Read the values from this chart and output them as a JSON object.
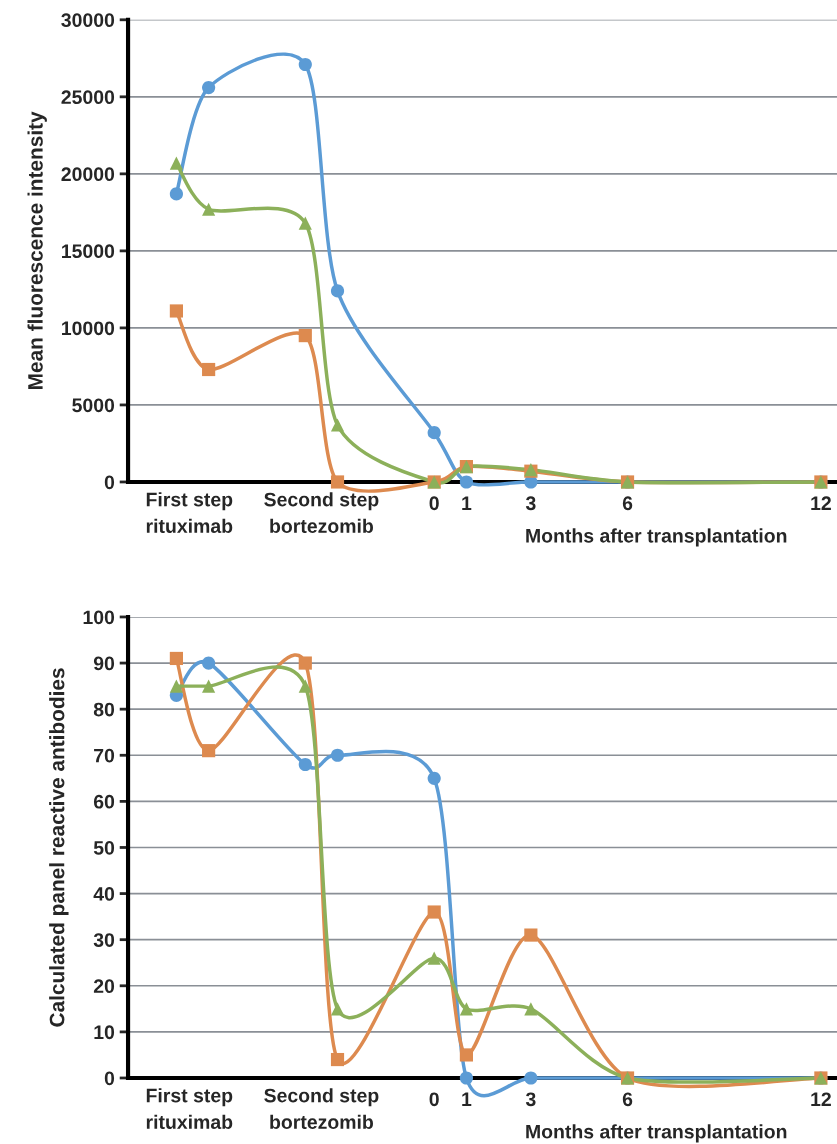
{
  "chart_data": [
    {
      "type": "line",
      "ylabel": "Mean fluorescence intensity",
      "xlabel": "Months after transplantation",
      "x": [
        -8,
        -7,
        -4,
        -3,
        0,
        1,
        3,
        6,
        12
      ],
      "series": [
        {
          "color": "#5b9bd5",
          "marker": "circle",
          "values": [
            18700,
            25600,
            27100,
            12400,
            3200,
            0,
            0,
            0,
            0
          ]
        },
        {
          "color": "#dd8a4f",
          "marker": "square",
          "values": [
            11100,
            7300,
            9500,
            0,
            0,
            1000,
            700,
            0,
            0
          ]
        },
        {
          "color": "#8cb05a",
          "marker": "triangle",
          "values": [
            20700,
            17700,
            16800,
            3700,
            0,
            1000,
            800,
            0,
            0
          ]
        }
      ],
      "xlim": [
        -9.5,
        12.5
      ],
      "xticks": [
        0,
        1,
        3,
        6,
        12
      ],
      "annotations": [
        "First step\nrituximab",
        "Second step\nbortezomib"
      ],
      "ylim": [
        0,
        30000
      ],
      "yticks": [
        0,
        5000,
        10000,
        15000,
        20000,
        25000,
        30000
      ],
      "grid": "y",
      "legend": false,
      "line_style": "solid"
    },
    {
      "type": "line",
      "ylabel": "Calculated panel reactive antibodies",
      "xlabel": "Months after transplantation",
      "x": [
        -8,
        -7,
        -4,
        -3,
        0,
        1,
        3,
        6,
        12
      ],
      "series": [
        {
          "color": "#5b9bd5",
          "marker": "circle",
          "values": [
            83,
            90,
            68,
            70,
            65,
            0,
            0,
            0,
            0
          ]
        },
        {
          "color": "#dd8a4f",
          "marker": "square",
          "values": [
            91,
            71,
            90,
            4,
            36,
            5,
            31,
            0,
            0
          ]
        },
        {
          "color": "#8cb05a",
          "marker": "triangle",
          "values": [
            85,
            85,
            85,
            15,
            26,
            15,
            15,
            0,
            0
          ]
        }
      ],
      "xlim": [
        -9.5,
        12.5
      ],
      "xticks": [
        0,
        1,
        3,
        6,
        12
      ],
      "annotations": [
        "First step\nrituximab",
        "Second step\nbortezomib"
      ],
      "ylim": [
        0,
        100
      ],
      "yticks": [
        0,
        10,
        20,
        30,
        40,
        50,
        60,
        70,
        80,
        90,
        100
      ],
      "grid": "y",
      "legend": false,
      "line_style": "solid"
    }
  ]
}
